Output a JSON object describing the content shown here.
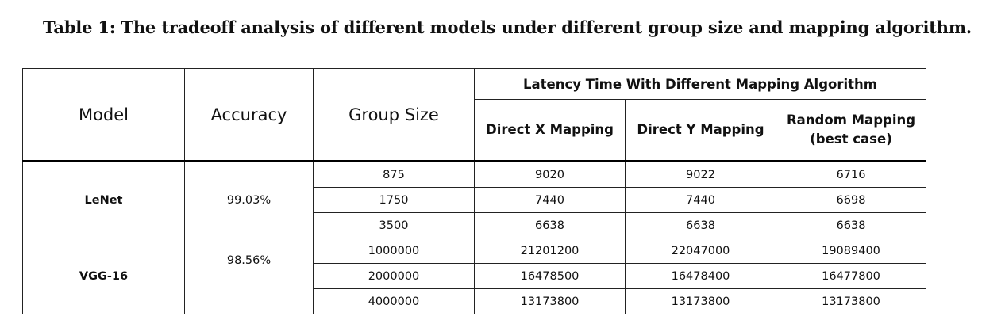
{
  "caption": "Table 1: The tradeoff analysis of different models under different group size and mapping algorithm.",
  "headers": {
    "model": "Model",
    "accuracy": "Accuracy",
    "group_size": "Group Size",
    "latency": "Latency Time With Different Mapping Algorithm",
    "direct_x": "Direct X Mapping",
    "direct_y": "Direct Y Mapping",
    "random_line1": "Random Mapping",
    "random_line2": "(best case)"
  },
  "models": [
    {
      "name": "LeNet",
      "accuracy": "99.03%",
      "rows": [
        {
          "group_size": "875",
          "direct_x": "9020",
          "direct_y": "9022",
          "random": "6716"
        },
        {
          "group_size": "1750",
          "direct_x": "7440",
          "direct_y": "7440",
          "random": "6698"
        },
        {
          "group_size": "3500",
          "direct_x": "6638",
          "direct_y": "6638",
          "random": "6638"
        }
      ]
    },
    {
      "name": "VGG-16",
      "accuracy": "98.56%",
      "rows": [
        {
          "group_size": "1000000",
          "direct_x": "21201200",
          "direct_y": "22047000",
          "random": "19089400"
        },
        {
          "group_size": "2000000",
          "direct_x": "16478500",
          "direct_y": "16478400",
          "random": "16477800"
        },
        {
          "group_size": "4000000",
          "direct_x": "13173800",
          "direct_y": "13173800",
          "random": "13173800"
        }
      ]
    }
  ]
}
